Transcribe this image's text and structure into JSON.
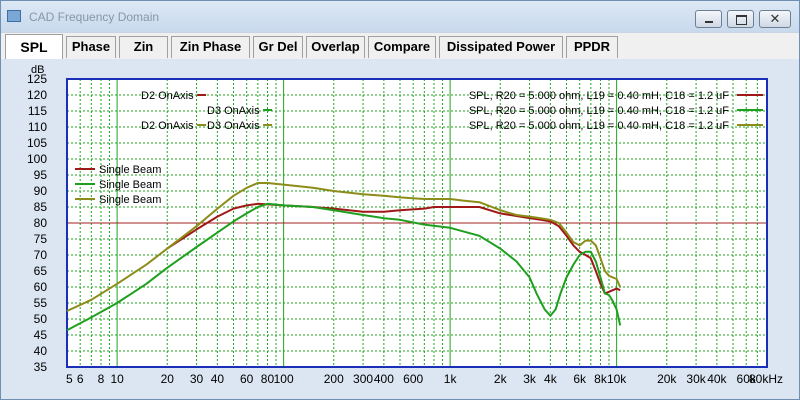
{
  "window": {
    "title": "CAD Frequency Domain",
    "controls": {
      "minimize": "minimize",
      "maximize": "maximize",
      "close": "✕"
    }
  },
  "tabs": [
    {
      "label": "SPL",
      "active": true
    },
    {
      "label": "Phase"
    },
    {
      "label": "Zin"
    },
    {
      "label": "Zin Phase"
    },
    {
      "label": "Gr Del"
    },
    {
      "label": "Overlap"
    },
    {
      "label": "Compare"
    },
    {
      "label": "Dissipated Power"
    },
    {
      "label": "PPDR"
    }
  ],
  "colors": {
    "red": "#a01818",
    "green": "#1ea01e",
    "olive": "#8c8c1a",
    "grid": "#1fa51f",
    "plot_bg": "#ffffff",
    "border": "#1a2fb8",
    "ref_line": "#a02020"
  },
  "chart_data": {
    "type": "line",
    "title": "SPL",
    "ylabel": "dB",
    "xscale": "log",
    "xlim": [
      5,
      80000
    ],
    "ylim": [
      35,
      125
    ],
    "y_ticks": [
      35,
      40,
      45,
      50,
      55,
      60,
      65,
      70,
      75,
      80,
      85,
      90,
      95,
      100,
      105,
      110,
      115,
      120,
      125
    ],
    "x_tick_labels": [
      {
        "v": 5,
        "t": "5"
      },
      {
        "v": 6,
        "t": "6"
      },
      {
        "v": 8,
        "t": "8"
      },
      {
        "v": 10,
        "t": "10"
      },
      {
        "v": 20,
        "t": "20"
      },
      {
        "v": 30,
        "t": "30"
      },
      {
        "v": 40,
        "t": "40"
      },
      {
        "v": 60,
        "t": "60"
      },
      {
        "v": 80,
        "t": "80"
      },
      {
        "v": 100,
        "t": "100"
      },
      {
        "v": 200,
        "t": "200"
      },
      {
        "v": 300,
        "t": "300"
      },
      {
        "v": 400,
        "t": "400"
      },
      {
        "v": 600,
        "t": "600"
      },
      {
        "v": 1000,
        "t": "1k"
      },
      {
        "v": 2000,
        "t": "2k"
      },
      {
        "v": 3000,
        "t": "3k"
      },
      {
        "v": 4000,
        "t": "4k"
      },
      {
        "v": 6000,
        "t": "6k"
      },
      {
        "v": 8000,
        "t": "8k"
      },
      {
        "v": 10000,
        "t": "10k"
      },
      {
        "v": 20000,
        "t": "20k"
      },
      {
        "v": 30000,
        "t": "30k"
      },
      {
        "v": 40000,
        "t": "40k"
      },
      {
        "v": 60000,
        "t": "60k"
      },
      {
        "v": 80000,
        "t": "80kHz"
      }
    ],
    "reference_line": 80,
    "legend_left_top": [
      {
        "label": "D2 OnAxis",
        "color": "red"
      },
      {
        "label": "D3 OnAxis",
        "color": "green"
      },
      {
        "label": "D2 OnAxis",
        "color": "olive"
      },
      {
        "label": "D3 OnAxis",
        "color": "olive"
      }
    ],
    "legend_left_mid": [
      {
        "label": "Single Beam",
        "color": "red"
      },
      {
        "label": "Single Beam",
        "color": "green"
      },
      {
        "label": "Single Beam",
        "color": "olive"
      }
    ],
    "legend_right": [
      {
        "label": "SPL, R20 = 5.000 ohm, L19 = 0.40 mH, C18 = 1.2 uF",
        "color": "red"
      },
      {
        "label": "SPL, R20 = 5.000 ohm, L19 = 0.40 mH, C18 = 1.2 uF",
        "color": "green"
      },
      {
        "label": "SPL, R20 = 5.000 ohm, L19 = 0.40 mH, C18 = 1.2 uF",
        "color": "olive"
      }
    ],
    "series": [
      {
        "name": "SPL red",
        "color": "red",
        "points": [
          [
            20,
            72
          ],
          [
            30,
            78
          ],
          [
            40,
            82
          ],
          [
            50,
            84.5
          ],
          [
            60,
            85.5
          ],
          [
            70,
            86
          ],
          [
            80,
            85.8
          ],
          [
            100,
            85.5
          ],
          [
            150,
            85
          ],
          [
            200,
            84.5
          ],
          [
            300,
            83.5
          ],
          [
            400,
            83.5
          ],
          [
            500,
            84
          ],
          [
            700,
            84.5
          ],
          [
            800,
            85
          ],
          [
            1000,
            85
          ],
          [
            1300,
            85
          ],
          [
            1500,
            85
          ],
          [
            2000,
            83
          ],
          [
            3000,
            81.5
          ],
          [
            3500,
            81
          ],
          [
            4000,
            80.5
          ],
          [
            4500,
            79
          ],
          [
            5000,
            76
          ],
          [
            5500,
            73
          ],
          [
            6000,
            71
          ],
          [
            6500,
            70
          ],
          [
            7000,
            69
          ],
          [
            7500,
            65
          ],
          [
            8000,
            61
          ],
          [
            8500,
            58
          ],
          [
            9000,
            58.5
          ],
          [
            10000,
            59.5
          ],
          [
            10500,
            59
          ]
        ]
      },
      {
        "name": "SPL green",
        "color": "green",
        "points": [
          [
            5,
            46.5
          ],
          [
            7,
            50.5
          ],
          [
            10,
            55
          ],
          [
            15,
            61
          ],
          [
            20,
            66
          ],
          [
            30,
            72.5
          ],
          [
            40,
            77
          ],
          [
            50,
            80.5
          ],
          [
            60,
            83
          ],
          [
            70,
            85
          ],
          [
            80,
            86
          ],
          [
            100,
            85.5
          ],
          [
            150,
            85
          ],
          [
            200,
            84
          ],
          [
            300,
            82.5
          ],
          [
            400,
            81.5
          ],
          [
            500,
            81
          ],
          [
            700,
            79.5
          ],
          [
            1000,
            78.5
          ],
          [
            1500,
            76
          ],
          [
            2000,
            72
          ],
          [
            2500,
            68
          ],
          [
            3000,
            63
          ],
          [
            3300,
            58
          ],
          [
            3700,
            53
          ],
          [
            4000,
            51
          ],
          [
            4300,
            53
          ],
          [
            4600,
            58
          ],
          [
            5000,
            63
          ],
          [
            5500,
            67
          ],
          [
            6000,
            70
          ],
          [
            6500,
            71
          ],
          [
            7000,
            71
          ],
          [
            7500,
            68
          ],
          [
            8000,
            63
          ],
          [
            8500,
            58
          ],
          [
            9000,
            57.5
          ],
          [
            9500,
            55.5
          ],
          [
            10000,
            53
          ],
          [
            10500,
            48
          ]
        ]
      },
      {
        "name": "SPL olive",
        "color": "olive",
        "points": [
          [
            5,
            52.5
          ],
          [
            7,
            56
          ],
          [
            10,
            61
          ],
          [
            15,
            67
          ],
          [
            20,
            72
          ],
          [
            30,
            79
          ],
          [
            40,
            84.5
          ],
          [
            50,
            88.5
          ],
          [
            60,
            91
          ],
          [
            70,
            92.5
          ],
          [
            80,
            92.5
          ],
          [
            100,
            92
          ],
          [
            150,
            91
          ],
          [
            200,
            90
          ],
          [
            300,
            89
          ],
          [
            400,
            88.5
          ],
          [
            500,
            88
          ],
          [
            700,
            87.5
          ],
          [
            1000,
            87.5
          ],
          [
            1200,
            87
          ],
          [
            1500,
            86.5
          ],
          [
            2000,
            84
          ],
          [
            2500,
            82.5
          ],
          [
            3000,
            82
          ],
          [
            3500,
            81.5
          ],
          [
            4000,
            81
          ],
          [
            4500,
            80
          ],
          [
            5000,
            77
          ],
          [
            5500,
            74
          ],
          [
            6000,
            73
          ],
          [
            6500,
            74.5
          ],
          [
            7000,
            74.5
          ],
          [
            7500,
            73
          ],
          [
            8000,
            69
          ],
          [
            8500,
            65
          ],
          [
            9000,
            63.5
          ],
          [
            10000,
            62.5
          ],
          [
            10500,
            60
          ]
        ]
      }
    ]
  }
}
